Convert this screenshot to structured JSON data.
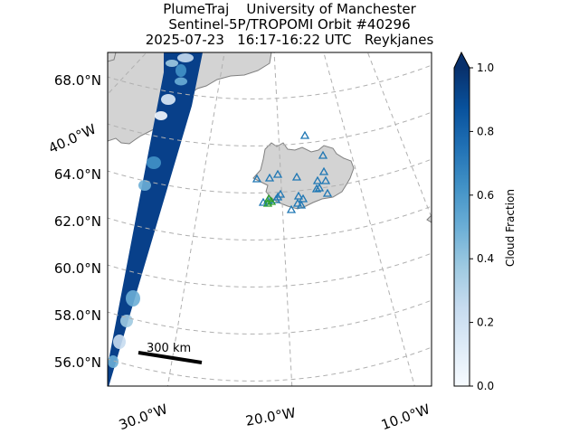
{
  "title": {
    "line1": "PlumeTraj    University of Manchester",
    "line2": "Sentinel-5P/TROPOMI Orbit #40296",
    "line3": "2025-07-23   16:17-16:22 UTC   Reykjanes"
  },
  "map": {
    "lat_labels": [
      {
        "lat": 68,
        "text": "68.0°N"
      },
      {
        "lat": 64,
        "text": "64.0°N"
      },
      {
        "lat": 62,
        "text": "62.0°N"
      },
      {
        "lat": 60,
        "text": "60.0°N"
      },
      {
        "lat": 58,
        "text": "58.0°N"
      },
      {
        "lat": 56,
        "text": "56.0°N"
      }
    ],
    "lon_labels": [
      {
        "lon": -40,
        "text": "40.0°W"
      },
      {
        "lon": -30,
        "text": "30.0°W"
      },
      {
        "lon": -20,
        "text": "20.0°W"
      },
      {
        "lon": -10,
        "text": "10.0°W"
      }
    ],
    "gridlines": true,
    "scale_bar_label": "300 km",
    "land_color": "#d3d3d3",
    "coast_color": "#808080",
    "volcano_marker_color": "#1f77b4",
    "active_volcano_color": "#2ca02c"
  },
  "colorbar": {
    "label": "Cloud Fraction",
    "min": 0.0,
    "max": 1.0,
    "ticks": [
      "0.0",
      "0.2",
      "0.4",
      "0.6",
      "0.8",
      "1.0"
    ],
    "colormap": "Blues",
    "extend": "max"
  }
}
